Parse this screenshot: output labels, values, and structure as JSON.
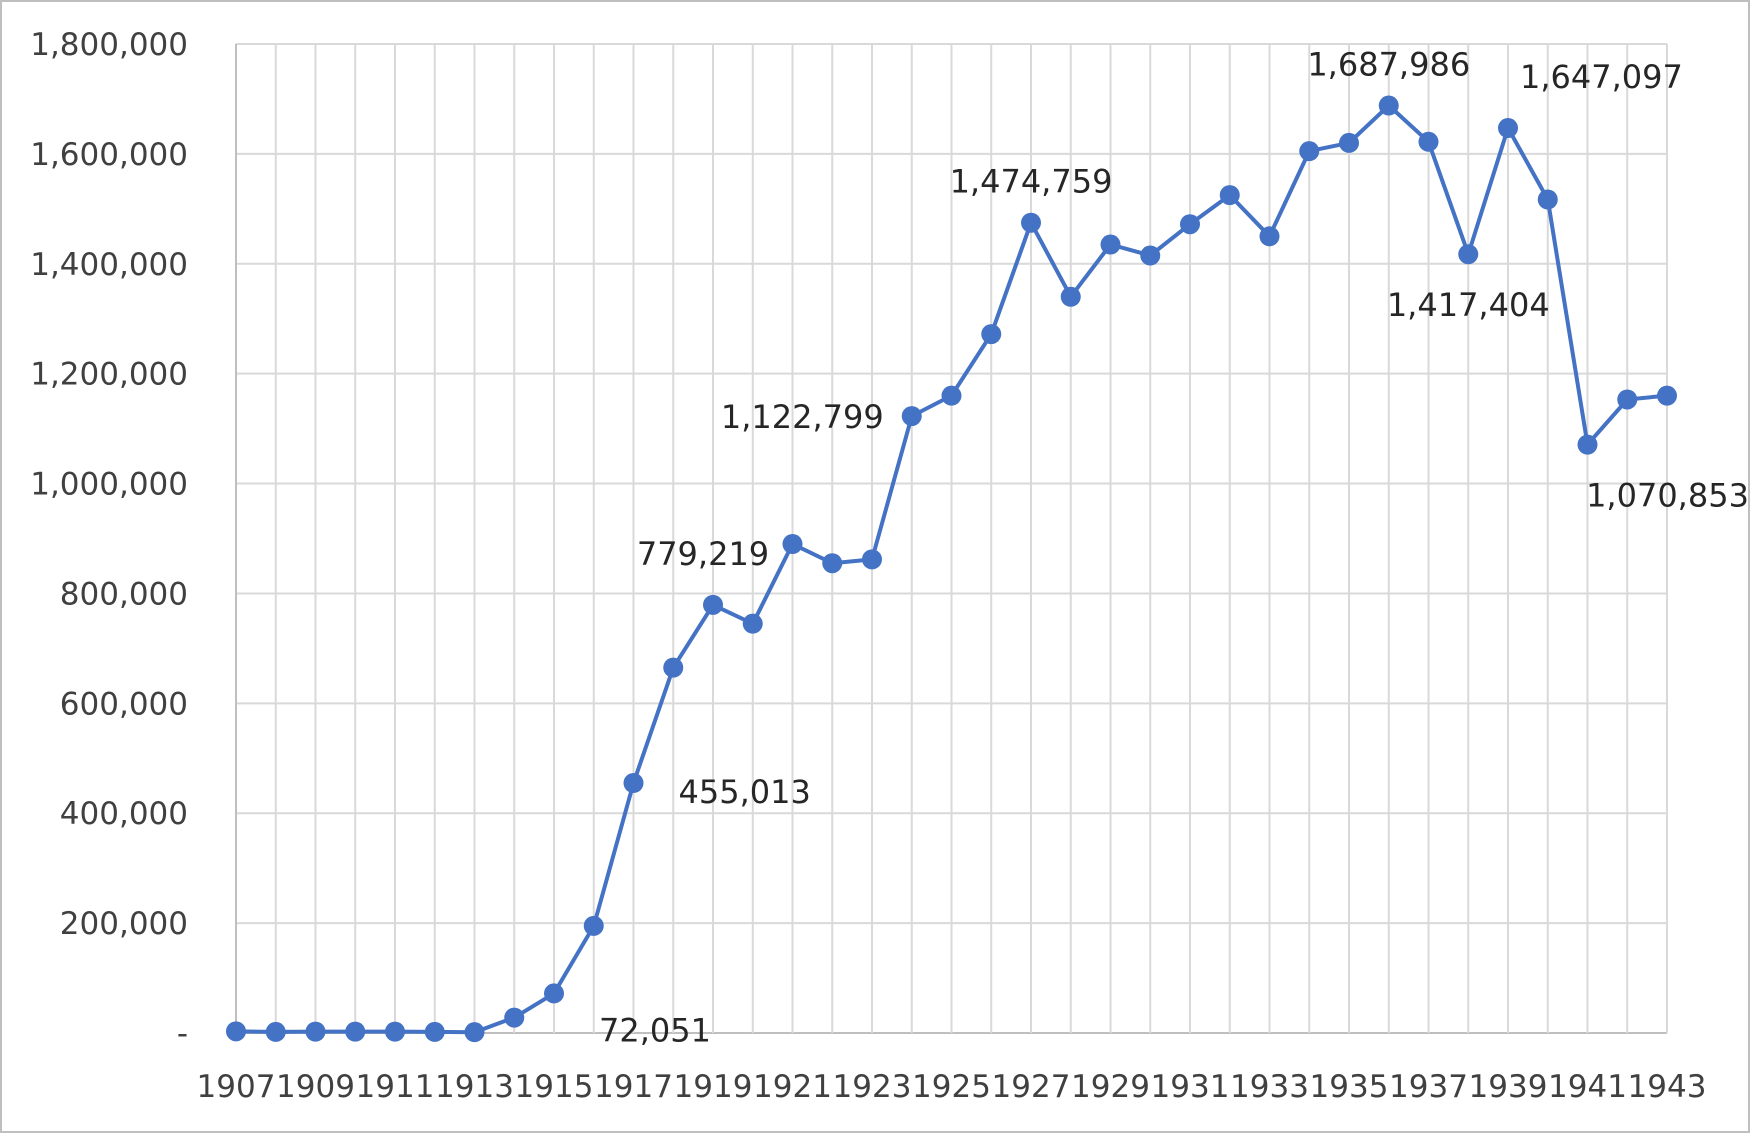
{
  "theme": {
    "line_color": "#4472c4",
    "marker_color": "#4472c4",
    "grid_color": "#d9d9d9"
  },
  "chart_data": {
    "type": "line",
    "title": "",
    "xlabel": "",
    "ylabel": "",
    "x": [
      1907,
      1908,
      1909,
      1910,
      1911,
      1912,
      1913,
      1914,
      1915,
      1916,
      1917,
      1918,
      1919,
      1920,
      1921,
      1922,
      1923,
      1924,
      1925,
      1926,
      1927,
      1928,
      1929,
      1930,
      1931,
      1932,
      1933,
      1934,
      1935,
      1936,
      1937,
      1938,
      1939,
      1940,
      1941,
      1942,
      1943
    ],
    "x_tick_labels": [
      "1907",
      "1909",
      "1911",
      "1913",
      "1915",
      "1917",
      "1919",
      "1921",
      "1923",
      "1925",
      "1927",
      "1929",
      "1931",
      "1933",
      "1935",
      "1937",
      "1939",
      "1941",
      "1943"
    ],
    "y_tick_labels": [
      "-",
      "200,000",
      "400,000",
      "600,000",
      "800,000",
      "1,000,000",
      "1,200,000",
      "1,400,000",
      "1,600,000",
      "1,800,000"
    ],
    "ylim": [
      0,
      1800000
    ],
    "grid": true,
    "legend": "none",
    "series": [
      {
        "values": [
          3000,
          2000,
          2500,
          2500,
          2500,
          2000,
          1500,
          28000,
          72051,
          195000,
          455013,
          665000,
          779219,
          745000,
          890000,
          855000,
          862000,
          1122799,
          1160000,
          1272000,
          1474759,
          1340000,
          1435000,
          1415000,
          1472000,
          1525000,
          1450000,
          1605000,
          1620000,
          1687986,
          1622000,
          1417404,
          1647097,
          1517000,
          1070853,
          1153000,
          1160000
        ]
      }
    ],
    "data_labels": [
      {
        "year": 1915,
        "text": "72,051",
        "anchor": "below-right"
      },
      {
        "year": 1917,
        "text": "455,013",
        "anchor": "below-right"
      },
      {
        "year": 1919,
        "text": "779,219",
        "anchor": "above-left"
      },
      {
        "year": 1924,
        "text": "1,122,799",
        "anchor": "left"
      },
      {
        "year": 1927,
        "text": "1,474,759",
        "anchor": "above"
      },
      {
        "year": 1936,
        "text": "1,687,986",
        "anchor": "above"
      },
      {
        "year": 1938,
        "text": "1,417,404",
        "anchor": "below"
      },
      {
        "year": 1939,
        "text": "1,647,097",
        "anchor": "above-right"
      },
      {
        "year": 1941,
        "text": "1,070,853",
        "anchor": "below-right"
      }
    ]
  }
}
